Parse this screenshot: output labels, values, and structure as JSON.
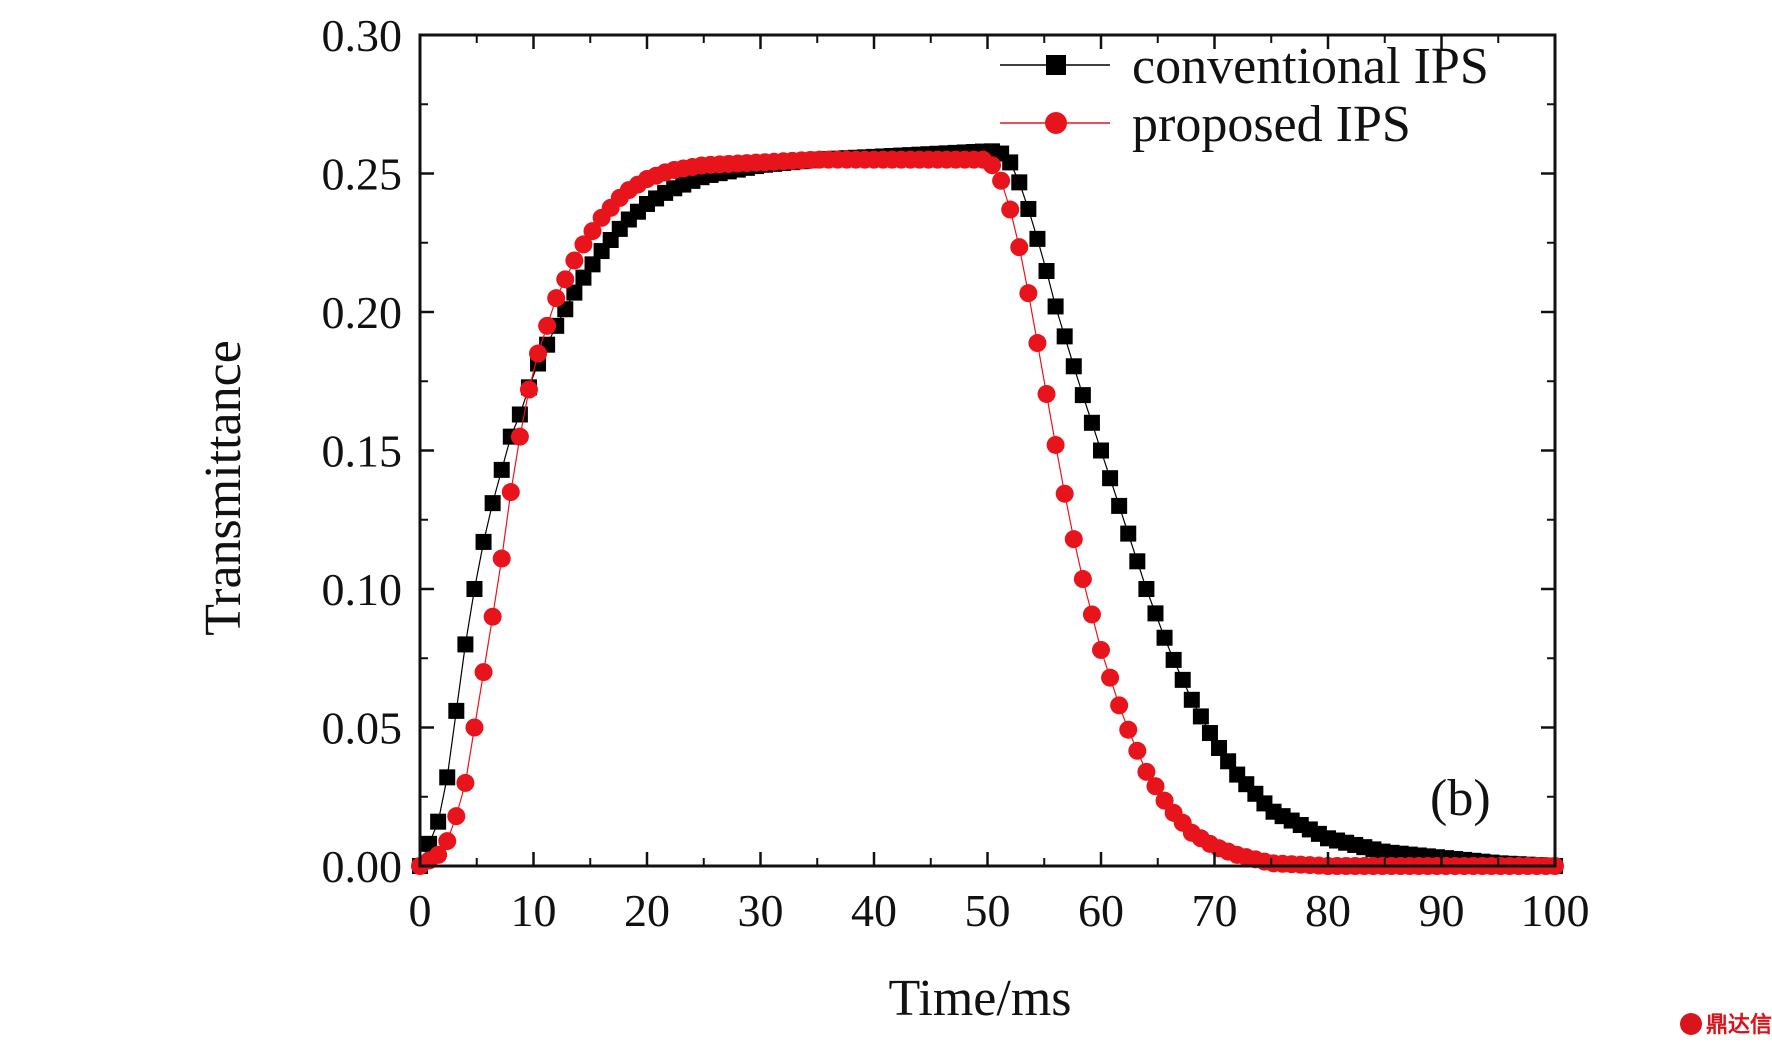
{
  "chart_data": {
    "type": "scatter",
    "title": "",
    "xlabel": "Time/ms",
    "ylabel": "Transmittance",
    "xlim": [
      0,
      100
    ],
    "ylim": [
      0,
      0.3
    ],
    "xticks": [
      0,
      10,
      20,
      30,
      40,
      50,
      60,
      70,
      80,
      90,
      100
    ],
    "yticks": [
      0.0,
      0.05,
      0.1,
      0.15,
      0.2,
      0.25,
      0.3
    ],
    "xtick_labels": [
      "0",
      "10",
      "20",
      "30",
      "40",
      "50",
      "60",
      "70",
      "80",
      "90",
      "100"
    ],
    "ytick_labels": [
      "0.00",
      "0.05",
      "0.10",
      "0.15",
      "0.20",
      "0.25",
      "0.30"
    ],
    "grid": false,
    "legend_position": "top-right",
    "annotation": "(b)",
    "series": [
      {
        "name": "conventional IPS",
        "marker": "square",
        "color": "#000000",
        "x": [
          0,
          2,
          3,
          4,
          5,
          6,
          7,
          8,
          9,
          10,
          12,
          14,
          16,
          18,
          20,
          22,
          25,
          30,
          35,
          40,
          45,
          50,
          51,
          52,
          53,
          54,
          55,
          56,
          58,
          60,
          62,
          64,
          66,
          68,
          70,
          72,
          75,
          80,
          85,
          90,
          95,
          100
        ],
        "y": [
          0.0,
          0.02,
          0.05,
          0.08,
          0.105,
          0.125,
          0.14,
          0.155,
          0.165,
          0.178,
          0.195,
          0.21,
          0.222,
          0.232,
          0.239,
          0.244,
          0.249,
          0.253,
          0.255,
          0.256,
          0.257,
          0.258,
          0.258,
          0.254,
          0.245,
          0.232,
          0.218,
          0.202,
          0.175,
          0.15,
          0.125,
          0.1,
          0.078,
          0.06,
          0.045,
          0.033,
          0.02,
          0.01,
          0.005,
          0.003,
          0.001,
          0.0
        ]
      },
      {
        "name": "proposed IPS",
        "marker": "circle",
        "color": "#e8141b",
        "x": [
          0,
          2,
          3,
          4,
          5,
          6,
          7,
          8,
          9,
          10,
          12,
          14,
          16,
          18,
          20,
          22,
          25,
          30,
          35,
          40,
          45,
          50,
          51,
          52,
          53,
          54,
          55,
          56,
          57,
          58,
          60,
          62,
          64,
          66,
          68,
          70,
          72,
          75,
          80,
          85,
          90,
          100
        ],
        "y": [
          0.0,
          0.005,
          0.015,
          0.03,
          0.055,
          0.08,
          0.105,
          0.135,
          0.16,
          0.18,
          0.205,
          0.222,
          0.234,
          0.243,
          0.248,
          0.251,
          0.253,
          0.254,
          0.255,
          0.255,
          0.255,
          0.255,
          0.25,
          0.237,
          0.22,
          0.198,
          0.175,
          0.152,
          0.13,
          0.11,
          0.078,
          0.053,
          0.034,
          0.021,
          0.012,
          0.007,
          0.004,
          0.001,
          0.0,
          0.0,
          0.0,
          0.0
        ]
      }
    ]
  },
  "watermark": {
    "text": "鼎达信",
    "color": "#d9141b"
  }
}
